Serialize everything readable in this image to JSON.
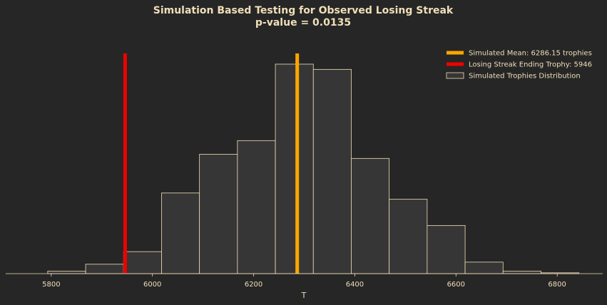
{
  "chart_data": {
    "type": "histogram",
    "title": "Simulation Based Testing for Observed Losing Streak",
    "subtitle": "p-value = 0.0135",
    "xlabel": "T",
    "ylabel": "",
    "xlim": [
      5710,
      6890
    ],
    "xticks": [
      5800,
      6000,
      6200,
      6400,
      6600,
      6800
    ],
    "bins": [
      {
        "start": 5793,
        "end": 5868,
        "count": 0.012
      },
      {
        "start": 5868,
        "end": 5943,
        "count": 0.045
      },
      {
        "start": 5943,
        "end": 6018,
        "count": 0.105
      },
      {
        "start": 6018,
        "end": 6093,
        "count": 0.385
      },
      {
        "start": 6093,
        "end": 6168,
        "count": 0.57
      },
      {
        "start": 6168,
        "end": 6243,
        "count": 0.635
      },
      {
        "start": 6243,
        "end": 6318,
        "count": 1.0
      },
      {
        "start": 6318,
        "end": 6393,
        "count": 0.975
      },
      {
        "start": 6393,
        "end": 6468,
        "count": 0.55
      },
      {
        "start": 6468,
        "end": 6543,
        "count": 0.355
      },
      {
        "start": 6543,
        "end": 6618,
        "count": 0.23
      },
      {
        "start": 6618,
        "end": 6693,
        "count": 0.055
      },
      {
        "start": 6693,
        "end": 6768,
        "count": 0.012
      },
      {
        "start": 6768,
        "end": 6843,
        "count": 0.004
      }
    ],
    "vlines": [
      {
        "name": "Simulated Mean: 6286.15 trophies",
        "x": 6286.15,
        "color": "#ffa500"
      },
      {
        "name": "Losing Streak Ending Trophy: 5946",
        "x": 5946,
        "color": "#ee0000"
      }
    ],
    "legend": [
      {
        "label": "Simulated Mean: 6286.15 trophies",
        "kind": "line",
        "color": "#ffa500"
      },
      {
        "label": "Losing Streak Ending Trophy: 5946",
        "kind": "line",
        "color": "#ee0000"
      },
      {
        "label": "Simulated Trophies Distribution",
        "kind": "patch",
        "color": "#363636"
      }
    ],
    "legend_position": "top-right",
    "colors": {
      "background": "#262626",
      "bar_fill": "#363636",
      "bar_edge": "#f0dfb8",
      "text": "#f0dfb8"
    }
  }
}
